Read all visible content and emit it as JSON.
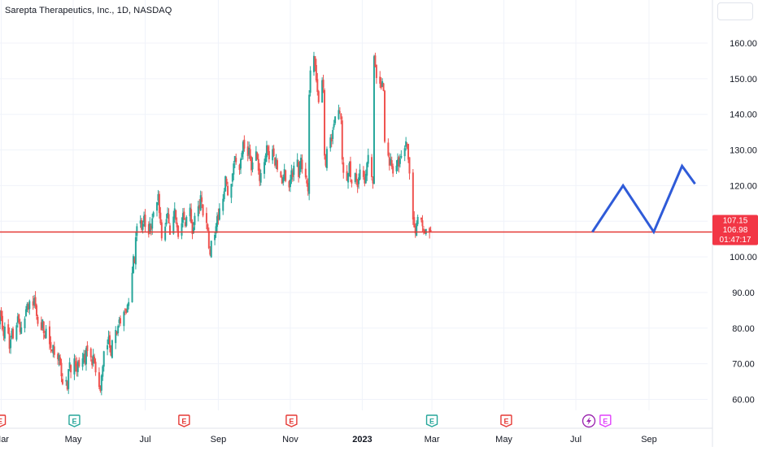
{
  "header": {
    "title": "Sarepta Therapeutics, Inc., 1D, NASDAQ"
  },
  "chart_data": {
    "type": "candlestick",
    "title": "Sarepta Therapeutics, Inc., 1D, NASDAQ",
    "x_tick_labels": [
      "Mar",
      "May",
      "Jul",
      "Sep",
      "Nov",
      "2023",
      "Mar",
      "May",
      "Jul",
      "Sep"
    ],
    "y_ticks": [
      "60.00",
      "70.00",
      "80.00",
      "90.00",
      "100.00",
      "110.00",
      "120.00",
      "130.00",
      "140.00",
      "150.00",
      "160.00"
    ],
    "ylim": [
      57,
      162
    ],
    "grid": true,
    "up_color": "#26a69a",
    "down_color": "#ef5350",
    "horizontal_line": {
      "value": 106.98,
      "color": "#e53935"
    },
    "price_tags": [
      {
        "label": "107.15",
        "value": 107.15
      },
      {
        "label": "106.98",
        "value": 106.98
      },
      {
        "label": "01:47:17",
        "value": 103.9
      }
    ],
    "projection_path": {
      "color": "#2f5bd8",
      "points": [
        {
          "x": "2023-07-15",
          "y": 107.0
        },
        {
          "x": "2023-08-10",
          "y": 120.0
        },
        {
          "x": "2023-09-05",
          "y": 107.0
        },
        {
          "x": "2023-09-29",
          "y": 125.5
        },
        {
          "x": "2023-10-10",
          "y": 120.5
        }
      ]
    },
    "events": [
      {
        "type": "E",
        "color": "#e53935",
        "x": "2022-02-28"
      },
      {
        "type": "E",
        "color": "#26a69a",
        "x": "2022-05-02"
      },
      {
        "type": "E",
        "color": "#e53935",
        "x": "2022-08-03"
      },
      {
        "type": "E",
        "color": "#e53935",
        "x": "2022-11-02"
      },
      {
        "type": "E",
        "color": "#26a69a",
        "x": "2023-03-01"
      },
      {
        "type": "E",
        "color": "#e53935",
        "x": "2023-05-03"
      },
      {
        "type": "lightning",
        "color": "#9c27b0",
        "x": "2023-07-12"
      },
      {
        "type": "E",
        "color": "#e040fb",
        "x": "2023-07-26"
      }
    ],
    "series": [
      {
        "name": "",
        "interval": "1D",
        "start": "2022-02-24",
        "close": [
          82.8,
          81.0,
          84.5,
          83.2,
          79.6,
          77.8,
          80.4,
          78.5,
          74.2,
          76.8,
          79.3,
          77.1,
          80.8,
          83.3,
          81.6,
          78.9,
          80.2,
          82.7,
          85.3,
          86.8,
          85.2,
          87.6,
          86.3,
          88.4,
          86.1,
          83.4,
          81.2,
          79.5,
          82.4,
          78.6,
          77.3,
          79.8,
          75.5,
          74.4,
          73.6,
          75.3,
          72.5,
          71.3,
          72.4,
          69.6,
          66.5,
          64.3,
          65.4,
          62.8,
          68.5,
          70.4,
          67.6,
          71.5,
          69.3,
          67.8,
          70.5,
          69.3,
          71.5,
          72.8,
          70.3,
          74.4,
          73.6,
          71.8,
          69.6,
          72.5,
          70.3,
          67.6,
          63.5,
          62.4,
          66.7,
          69.3,
          73.5,
          75.2,
          77.6,
          74.5,
          72.3,
          76.6,
          79.5,
          78.3,
          80.6,
          82.4,
          81.3,
          84.6,
          85.3,
          84.3,
          86.6,
          87.3,
          95.5,
          100.2,
          98.3,
          105.5,
          108.6,
          110.2,
          107.6,
          109.3,
          111.5,
          108.4,
          106.3,
          109.4,
          107.6,
          110.8,
          112.5,
          115.3,
          117.6,
          112.3,
          109.4,
          105.2,
          108.5,
          110.6,
          112.3,
          109.4,
          106.2,
          111.3,
          113.6,
          110.4,
          108.3,
          105.6,
          109.4,
          112.3,
          110.5,
          108.6,
          111.2,
          113.8,
          109.5,
          106.4,
          108.3,
          111.5,
          114.2,
          113.6,
          117.3,
          115.4,
          111.6,
          109.5,
          107.3,
          102.4,
          100.6,
          104.5,
          106.2,
          108.6,
          111.4,
          110.3,
          113.6,
          116.3,
          118.4,
          122.6,
          120.4,
          117.3,
          120.5,
          123.4,
          126.2,
          128.3,
          126.6,
          124.4,
          127.5,
          129.2,
          132.3,
          130.4,
          128.3,
          130.6,
          127.5,
          124.3,
          126.5,
          129.6,
          127.3,
          124.2,
          121.3,
          123.5,
          126.6,
          128.4,
          131.3,
          129.6,
          127.4,
          130.2,
          128.3,
          125.6,
          127.3,
          124.5,
          122.3,
          120.6,
          122.4,
          124.6,
          121.3,
          119.5,
          121.7,
          124.3,
          122.4,
          125.6,
          127.3,
          122.4,
          125.6,
          127.8,
          124.6,
          122.3,
          120.6,
          118.4,
          145.5,
          152.3,
          156.4,
          153.6,
          149.5,
          146.3,
          143.4,
          149.6,
          147.5,
          128.4,
          125.6,
          130.3,
          133.5,
          132.4,
          135.6,
          137.3,
          139.4,
          141.2,
          140.5,
          138.6,
          127.3,
          123.6,
          121.4,
          123.5,
          126.3,
          122.4,
          120.6,
          123.5,
          121.4,
          119.6,
          122.3,
          124.5,
          122.4,
          120.6,
          123.3,
          126.4,
          128.6,
          122.4,
          120.6,
          156.3,
          153.4,
          150.2,
          148.6,
          147.4,
          149.3,
          146.6,
          132.3,
          128.4,
          125.6,
          127.5,
          125.3,
          123.4,
          125.6,
          127.3,
          125.4,
          127.6,
          128.3,
          130.5,
          132.4,
          131.6,
          127.3,
          123.4,
          110.5,
          108.3,
          106.6,
          109.5,
          111.2,
          110.4,
          108.6,
          107.3,
          106.6,
          107.8,
          106.9,
          107.15
        ]
      }
    ]
  }
}
